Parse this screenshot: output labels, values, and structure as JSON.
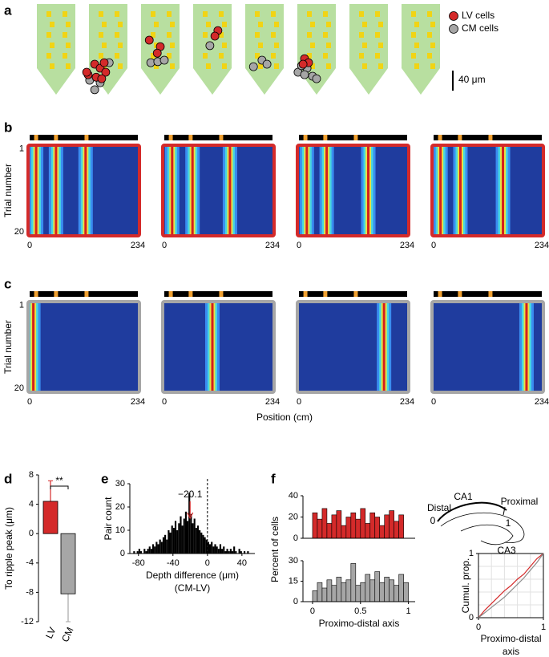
{
  "panel_labels": [
    "a",
    "b",
    "c",
    "d",
    "e",
    "f"
  ],
  "position_label": "Position (cm)",
  "hippocampus_labels": [
    "CA1",
    "Distal",
    "Proximal",
    "0",
    "1",
    "CA3"
  ],
  "chart_data": [
    {
      "type": "probe-scatter",
      "legend": [
        {
          "name": "LV cells",
          "color": "#d42a2a"
        },
        {
          "name": "CM cells",
          "color": "#a6a6a6"
        }
      ],
      "scale_bar": {
        "value": 40,
        "label": "40 μm"
      },
      "shanks": [
        {
          "lv": [],
          "cm": []
        },
        {
          "lv": [
            [
              -40,
              141
            ],
            [
              -27,
              120
            ],
            [
              -16,
              128
            ],
            [
              -8,
              117
            ],
            [
              -24,
              146
            ],
            [
              -43,
              136
            ],
            [
              -5,
              136
            ],
            [
              -13,
              149
            ]
          ],
          "cm": [
            [
              -27,
              171
            ],
            [
              2,
              117
            ],
            [
              -37,
              152
            ],
            [
              -16,
              157
            ]
          ]
        },
        {
          "lv": [
            [
              -22,
              72
            ],
            [
              0,
              85
            ],
            [
              -6,
              98
            ]
          ],
          "cm": [
            [
              -19,
              117
            ],
            [
              -5,
              115
            ],
            [
              8,
              112
            ]
          ]
        },
        {
          "lv": [
            [
              11,
              53
            ],
            [
              5,
              64
            ]
          ],
          "cm": [
            [
              -5,
              83
            ]
          ]
        },
        {
          "lv": [],
          "cm": [
            [
              -22,
              125
            ],
            [
              -5,
              112
            ],
            [
              5,
              120
            ]
          ]
        },
        {
          "lv": [
            [
              -24,
              109
            ],
            [
              -16,
              117
            ],
            [
              -27,
              120
            ]
          ],
          "cm": [
            [
              -37,
              136
            ],
            [
              -19,
              128
            ],
            [
              -8,
              144
            ],
            [
              -24,
              141
            ],
            [
              0,
              149
            ],
            [
              -30,
              123
            ]
          ]
        },
        {
          "lv": [],
          "cm": []
        },
        {
          "lv": [],
          "cm": []
        }
      ]
    },
    {
      "type": "heatmap",
      "xlim": [
        0,
        234
      ],
      "xticks": [
        0,
        234
      ],
      "ylim": [
        0.5,
        20.5
      ],
      "yticks": [
        1,
        20
      ],
      "ylabel": "Trial number",
      "border": "#d42a2a",
      "landmarks": [
        14,
        57,
        123
      ],
      "fields": [
        14,
        57,
        121
      ]
    },
    {
      "type": "heatmap",
      "xlim": [
        0,
        234
      ],
      "xticks": [
        0,
        234
      ],
      "ylim": [
        0.5,
        20.5
      ],
      "border": "#d42a2a",
      "landmarks": [
        14,
        57,
        123
      ],
      "fields": [
        17,
        61,
        142
      ]
    },
    {
      "type": "heatmap",
      "xlim": [
        0,
        234
      ],
      "xticks": [
        0,
        234
      ],
      "ylim": [
        0.5,
        20.5
      ],
      "border": "#d42a2a",
      "landmarks": [
        14,
        57,
        123
      ],
      "fields": [
        17,
        60,
        150
      ]
    },
    {
      "type": "heatmap",
      "xlim": [
        0,
        234
      ],
      "xticks": [
        0,
        234
      ],
      "ylim": [
        0.5,
        20.5
      ],
      "border": "#d42a2a",
      "landmarks": [
        14,
        57,
        123
      ],
      "fields": [
        15,
        58,
        150
      ]
    },
    {
      "type": "heatmap",
      "xlim": [
        0,
        234
      ],
      "xticks": [
        0,
        234
      ],
      "ylim": [
        0.5,
        20.5
      ],
      "yticks": [
        1,
        20
      ],
      "ylabel": "Trial number",
      "border": "#a6a6a6",
      "landmarks": [
        14,
        57,
        123
      ],
      "fields": [
        8
      ]
    },
    {
      "type": "heatmap",
      "xlim": [
        0,
        234
      ],
      "xticks": [
        0,
        234
      ],
      "ylim": [
        0.5,
        20.5
      ],
      "border": "#a6a6a6",
      "landmarks": [
        14,
        57,
        123
      ],
      "fields": [
        104
      ]
    },
    {
      "type": "heatmap",
      "xlim": [
        0,
        234
      ],
      "xticks": [
        0,
        234
      ],
      "ylim": [
        0.5,
        20.5
      ],
      "border": "#a6a6a6",
      "landmarks": [
        14,
        57,
        123
      ],
      "fields": [
        184
      ]
    },
    {
      "type": "heatmap",
      "xlim": [
        0,
        234
      ],
      "xticks": [
        0,
        234
      ],
      "ylim": [
        0.5,
        20.5
      ],
      "border": "#a6a6a6",
      "landmarks": [
        14,
        57,
        123
      ],
      "fields": [
        201
      ]
    },
    {
      "type": "bar",
      "categories": [
        "LV",
        "CM"
      ],
      "category_colors": [
        "#d42a2a",
        "#000000"
      ],
      "values": [
        4.4,
        -8.2
      ],
      "errors": [
        2.8,
        3.8
      ],
      "colors": [
        "#d42a2a",
        "#a6a6a6"
      ],
      "ylim": [
        -12,
        8
      ],
      "yticks": [
        -12,
        -8,
        -4,
        0,
        4,
        8
      ],
      "ylabel": "To ripple peak (μm)",
      "annotation": "**"
    },
    {
      "type": "histogram",
      "bins": [
        -86,
        -84,
        -82,
        -80,
        -78,
        -76,
        -74,
        -72,
        -70,
        -68,
        -66,
        -64,
        -62,
        -60,
        -58,
        -56,
        -54,
        -52,
        -50,
        -48,
        -46,
        -44,
        -42,
        -40,
        -38,
        -36,
        -34,
        -32,
        -30,
        -28,
        -26,
        -24,
        -22,
        -20,
        -18,
        -16,
        -14,
        -12,
        -10,
        -8,
        -6,
        -4,
        -2,
        0,
        2,
        4,
        6,
        8,
        10,
        12,
        14,
        16,
        18,
        20,
        22,
        24,
        26,
        28,
        30,
        32,
        34,
        36,
        38,
        40,
        42,
        44,
        46,
        48,
        50
      ],
      "values": [
        1,
        0,
        1,
        2,
        1,
        0,
        2,
        1,
        2,
        3,
        2,
        4,
        3,
        5,
        4,
        6,
        5,
        7,
        8,
        6,
        10,
        9,
        12,
        11,
        14,
        10,
        13,
        16,
        12,
        15,
        18,
        14,
        26,
        17,
        13,
        15,
        11,
        12,
        10,
        9,
        8,
        7,
        6,
        5,
        4,
        5,
        3,
        4,
        3,
        2,
        4,
        2,
        3,
        1,
        2,
        1,
        2,
        1,
        3,
        1,
        0,
        2,
        1,
        0,
        1,
        0,
        1,
        0
      ],
      "color": "#000000",
      "xlim": [
        -90,
        55
      ],
      "xticks": [
        -80,
        -40,
        0,
        40
      ],
      "ylim": [
        0,
        30
      ],
      "yticks": [
        0,
        10,
        20,
        30
      ],
      "ylabel": "Pair count",
      "xlabel": [
        "Depth difference (μm)",
        "(CM-LV)"
      ],
      "marker": {
        "value": -20.1,
        "label": "−20.1",
        "color": "#d42a2a"
      },
      "ref_line": 0
    },
    {
      "type": "histogram",
      "bins": [
        0,
        0.05,
        0.1,
        0.15,
        0.2,
        0.25,
        0.3,
        0.35,
        0.4,
        0.45,
        0.5,
        0.55,
        0.6,
        0.65,
        0.7,
        0.75,
        0.8,
        0.85,
        0.9,
        0.95,
        1
      ],
      "values": [
        24,
        18,
        28,
        14,
        22,
        26,
        12,
        20,
        24,
        18,
        28,
        14,
        24,
        20,
        12,
        22,
        26,
        16,
        22,
        0
      ],
      "color": "#d42a2a",
      "xlim": [
        -0.1,
        1.07
      ],
      "ylim": [
        0,
        40
      ],
      "yticks": [
        0,
        20,
        40
      ],
      "ylabel": "Percent of cells"
    },
    {
      "type": "histogram",
      "bins": [
        0,
        0.05,
        0.1,
        0.15,
        0.2,
        0.25,
        0.3,
        0.35,
        0.4,
        0.45,
        0.5,
        0.55,
        0.6,
        0.65,
        0.7,
        0.75,
        0.8,
        0.85,
        0.9,
        0.95,
        1
      ],
      "values": [
        8,
        14,
        10,
        16,
        12,
        18,
        14,
        16,
        28,
        12,
        14,
        20,
        16,
        22,
        14,
        18,
        16,
        12,
        20,
        14
      ],
      "color": "#a6a6a6",
      "xlim": [
        -0.1,
        1.07
      ],
      "xticks": [
        0,
        0.5,
        1
      ],
      "ylim": [
        0,
        30
      ],
      "yticks": [
        0,
        15,
        30
      ],
      "xlabel": [
        "Proximo-distal axis"
      ]
    },
    {
      "type": "line",
      "x": [
        0,
        0.1,
        0.2,
        0.3,
        0.4,
        0.5,
        0.6,
        0.7,
        0.8,
        0.9,
        1
      ],
      "series": [
        {
          "color": "#d42a2a",
          "values": [
            0,
            0.12,
            0.22,
            0.32,
            0.42,
            0.5,
            0.6,
            0.68,
            0.8,
            0.92,
            1
          ]
        },
        {
          "color": "#8c8c8c",
          "values": [
            0,
            0.08,
            0.16,
            0.24,
            0.32,
            0.42,
            0.52,
            0.62,
            0.74,
            0.86,
            1
          ]
        }
      ],
      "xlim": [
        0,
        1
      ],
      "ylim": [
        0,
        1
      ],
      "xticks": [
        0,
        1
      ],
      "yticks": [
        0,
        1
      ],
      "ylabel": "Cumul. prop.",
      "xlabel": [
        "Proximo-distal",
        "axis"
      ]
    }
  ]
}
